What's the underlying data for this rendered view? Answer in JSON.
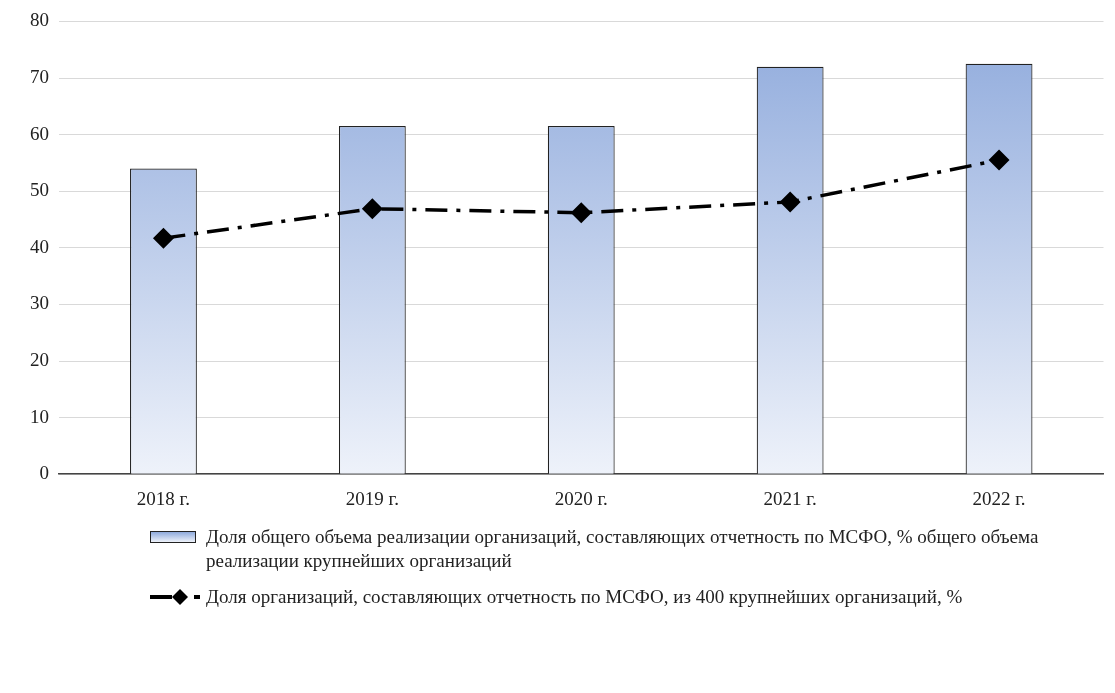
{
  "chart_data": {
    "type": "bar",
    "categories": [
      "2018 г.",
      "2019 г.",
      "2020 г.",
      "2021 г.",
      "2022 г."
    ],
    "series": [
      {
        "name": "Доля общего объема реализации организаций, составляющих отчетность по МСФО, % общего объема реализации крупнейших организаций",
        "type": "bar",
        "color": "#8faadc",
        "values": [
          54,
          61.5,
          61.5,
          72,
          72.5
        ]
      },
      {
        "name": "Доля организаций, составляющих отчетность по МСФО, из 400 крупнейших организаций, %",
        "type": "line",
        "color": "#000000",
        "values": [
          41.7,
          46.9,
          46.2,
          48.1,
          55.5
        ],
        "marker": "diamond",
        "line_style": "dashed"
      }
    ],
    "ylim": [
      0,
      80
    ],
    "yticks": [
      0,
      10,
      20,
      30,
      40,
      50,
      60,
      70,
      80
    ],
    "grid": "y",
    "legend": "bottom"
  }
}
